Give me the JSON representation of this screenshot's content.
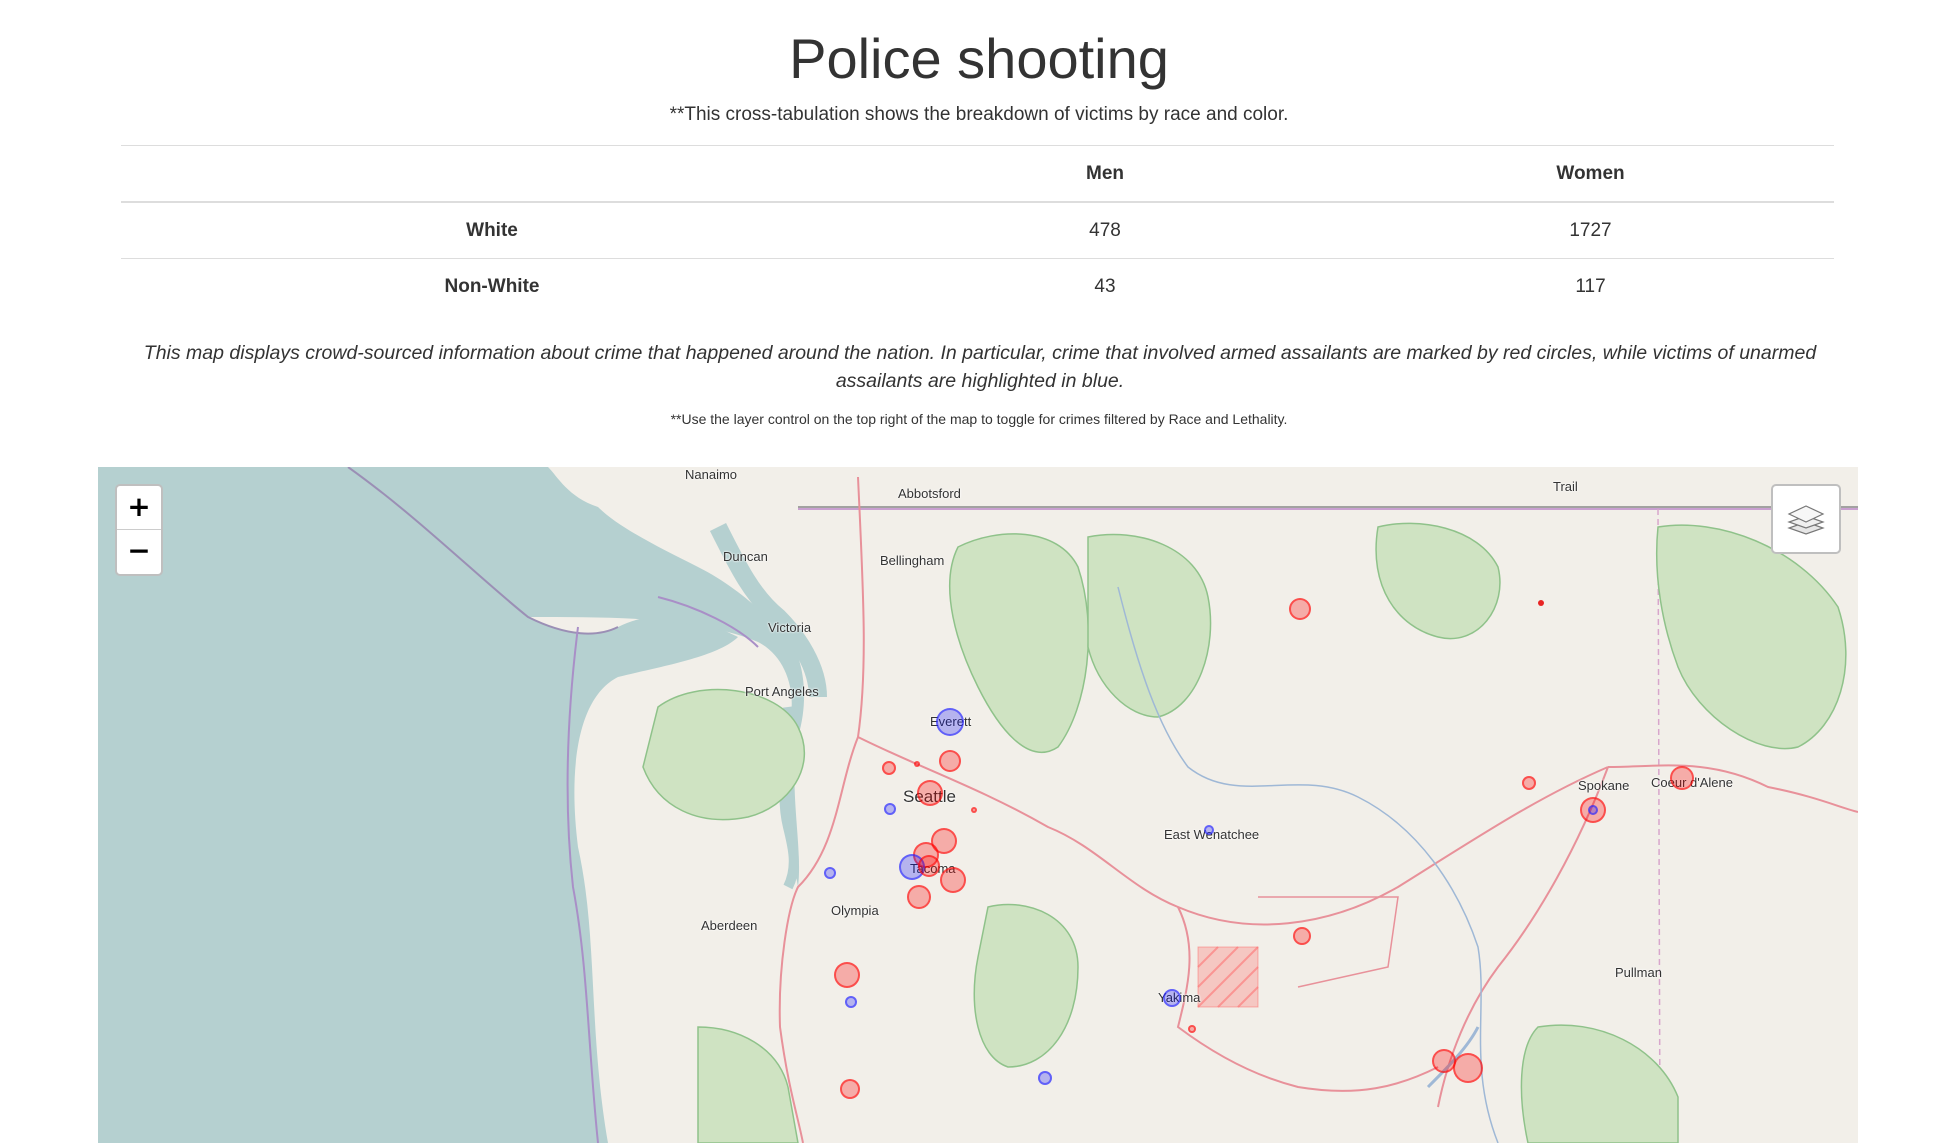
{
  "page": {
    "title": "Police shooting",
    "subtitle": "**This cross-tabulation shows the breakdown of victims by race and color.",
    "description": "This map displays crowd-sourced information about crime that happened around the nation. In particular, crime that involved armed assailants are marked by red circles, while victims of unarmed assailants are highlighted in blue.",
    "note": "**Use the layer control on the top right of the map to toggle for crimes filtered by Race and Lethality."
  },
  "table": {
    "headers": [
      "",
      "Men",
      "Women"
    ],
    "rows": [
      {
        "label": "White",
        "men": "478",
        "women": "1727"
      },
      {
        "label": "Non-White",
        "men": "43",
        "women": "117"
      }
    ]
  },
  "map": {
    "zoom_in_label": "+",
    "zoom_out_label": "−",
    "layer_control_icon": "layers-icon",
    "colors": {
      "armed": "#ff0000",
      "unarmed": "#0000ff",
      "water": "#b5d0d0",
      "land": "#f2efe9"
    },
    "places": [
      "Nanaimo",
      "Abbotsford",
      "Trail",
      "Duncan",
      "Bellingham",
      "Victoria",
      "Port Angeles",
      "Everett",
      "Seattle",
      "Spokane",
      "Coeur d'Alene",
      "East Wenatchee",
      "Tacoma",
      "Olympia",
      "Aberdeen",
      "Pullman",
      "Yakima"
    ]
  }
}
